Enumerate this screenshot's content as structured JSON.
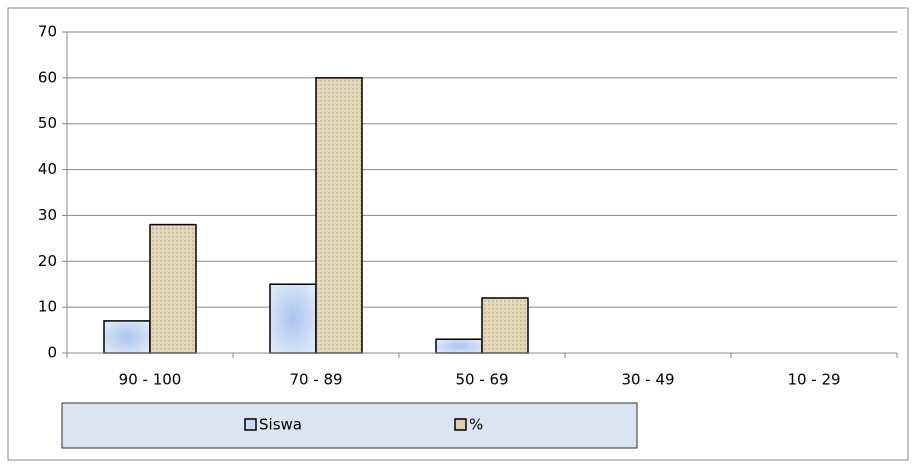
{
  "chart_data": {
    "type": "bar",
    "categories": [
      "90 - 100",
      "70 - 89",
      "50 - 69",
      "30 - 49",
      "10 - 29"
    ],
    "series": [
      {
        "name": "Siswa",
        "color": "#c6d9f1",
        "values": [
          7,
          15,
          3,
          0,
          0
        ]
      },
      {
        "name": "%",
        "color": "#ddd0b0",
        "values": [
          28,
          60,
          12,
          0,
          0
        ]
      }
    ],
    "ylim": [
      0,
      70
    ],
    "yticks": [
      0,
      10,
      20,
      30,
      40,
      50,
      60,
      70
    ],
    "grid": true,
    "legend": "bottom"
  }
}
